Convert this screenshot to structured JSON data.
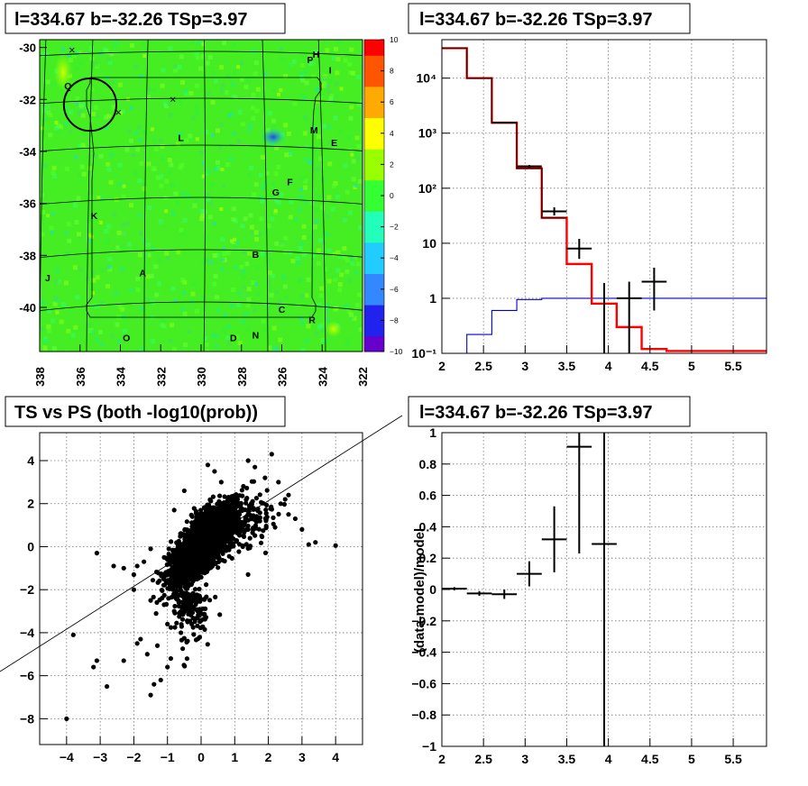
{
  "colors": {
    "histogram_model": "#ff0000",
    "histogram_data": "#000000",
    "background_model": "#0000cc",
    "map_ramp": [
      "#6600cc",
      "#2222ee",
      "#3388ff",
      "#22ccff",
      "#22ffbb",
      "#33ff33",
      "#99ff00",
      "#ffff00",
      "#ffaa00",
      "#ff5500",
      "#ff0000"
    ]
  },
  "chart_data": [
    {
      "id": "sky_map",
      "type": "heatmap",
      "title": "l=334.67 b=-32.26 TSp=3.97",
      "xlim": [
        338,
        322
      ],
      "ylim": [
        -41.7,
        -29.7
      ],
      "xticks": [
        338,
        336,
        334,
        332,
        330,
        328,
        326,
        324,
        322
      ],
      "yticks": [
        -30,
        -32,
        -34,
        -36,
        -38,
        -40
      ],
      "colorbar": {
        "range": [
          -10,
          10
        ],
        "ticks": [
          10,
          8,
          6,
          4,
          2,
          0,
          -2,
          -4,
          -6,
          -8,
          -10
        ]
      },
      "labels": [
        {
          "text": "Q",
          "x": 336.6,
          "y": -31.6
        },
        {
          "text": "H",
          "x": 324.3,
          "y": -30.4
        },
        {
          "text": "P",
          "x": 324.6,
          "y": -30.6
        },
        {
          "text": "I",
          "x": 323.6,
          "y": -31.0
        },
        {
          "text": "M",
          "x": 324.4,
          "y": -33.3
        },
        {
          "text": "E",
          "x": 323.4,
          "y": -33.8
        },
        {
          "text": "L",
          "x": 331.0,
          "y": -33.6
        },
        {
          "text": "F",
          "x": 325.6,
          "y": -35.3
        },
        {
          "text": "G",
          "x": 326.3,
          "y": -35.7
        },
        {
          "text": "K",
          "x": 335.3,
          "y": -36.6
        },
        {
          "text": "B",
          "x": 327.3,
          "y": -38.1
        },
        {
          "text": "J",
          "x": 337.6,
          "y": -39.0
        },
        {
          "text": "A",
          "x": 332.9,
          "y": -38.8
        },
        {
          "text": "C",
          "x": 326.0,
          "y": -40.2
        },
        {
          "text": "R",
          "x": 324.5,
          "y": -40.6
        },
        {
          "text": "N",
          "x": 327.3,
          "y": -41.2
        },
        {
          "text": "D",
          "x": 328.4,
          "y": -41.3
        },
        {
          "text": "O",
          "x": 333.7,
          "y": -41.3
        }
      ],
      "crosses": [
        {
          "x": 336.4,
          "y": -30.1
        },
        {
          "x": 334.1,
          "y": -32.5
        },
        {
          "x": 331.4,
          "y": -32.0
        }
      ],
      "circle": {
        "x": 335.5,
        "y": -32.2,
        "r": 0.5
      }
    },
    {
      "id": "spectrum",
      "type": "line",
      "title": "l=334.67 b=-32.26 TSp=3.97",
      "xlim": [
        2,
        5.9
      ],
      "ylim": [
        0.1,
        50000
      ],
      "yscale": "log",
      "xticks": [
        2,
        2.5,
        3,
        3.5,
        4,
        4.5,
        5,
        5.5
      ],
      "xticklabels": [
        "2",
        "2.5",
        "3",
        "3.5",
        "4",
        "4.5",
        "5",
        "5.5"
      ],
      "yticks": [
        0.1,
        1,
        10,
        100,
        1000,
        10000
      ],
      "yticklabels": [
        "10⁻¹",
        "1",
        "10",
        "10²",
        "10³",
        "10⁴"
      ],
      "bin_edges": [
        2,
        2.3,
        2.6,
        2.9,
        3.2,
        3.5,
        3.8,
        4.1,
        4.4,
        4.7,
        5.0,
        5.3,
        5.6,
        5.9
      ],
      "model": [
        35000,
        10000,
        1550,
        230,
        29,
        4.2,
        0.8,
        0.3,
        0.12,
        0.11,
        0.11,
        0.11,
        0.11
      ],
      "background": [
        0.1,
        0.22,
        0.6,
        0.95,
        1.0,
        1.0,
        1.0,
        1.0,
        1.0,
        1.0,
        1.0,
        1.0,
        1.0
      ],
      "data_points": [
        {
          "x": 2.75,
          "y": 1550,
          "dx": 0.15,
          "lo": 1500,
          "hi": 1600
        },
        {
          "x": 3.05,
          "y": 250,
          "dx": 0.15,
          "lo": 235,
          "hi": 265
        },
        {
          "x": 3.35,
          "y": 38,
          "dx": 0.15,
          "lo": 32,
          "hi": 45
        },
        {
          "x": 3.65,
          "y": 8,
          "dx": 0.15,
          "lo": 5.2,
          "hi": 12
        },
        {
          "x": 3.95,
          "y": 0.12,
          "dx": 0.0,
          "lo": 0.1,
          "hi": 1.9
        },
        {
          "x": 4.25,
          "y": 1.0,
          "dx": 0.15,
          "lo": 0.1,
          "hi": 2.0
        },
        {
          "x": 4.55,
          "y": 2.0,
          "dx": 0.15,
          "lo": 0.6,
          "hi": 3.6
        }
      ]
    },
    {
      "id": "ts_vs_ps",
      "type": "scatter",
      "title": "TS vs PS (both -log10(prob))",
      "xlim": [
        -4.8,
        4.8
      ],
      "ylim": [
        -9.2,
        5.3
      ],
      "xticks": [
        -4,
        -3,
        -2,
        -1,
        0,
        1,
        2,
        3,
        4
      ],
      "yticks": [
        -8,
        -6,
        -4,
        -2,
        0,
        2,
        4
      ],
      "diagonal": {
        "slope": 1
      },
      "outliers": [
        [
          -4.0,
          -8.0
        ],
        [
          -3.8,
          -4.1
        ],
        [
          -3.2,
          -5.6
        ],
        [
          -3.1,
          -5.3
        ],
        [
          -2.8,
          -6.5
        ],
        [
          -3.1,
          -0.3
        ],
        [
          -2.6,
          -0.9
        ],
        [
          -2.3,
          -1.0
        ],
        [
          -2.0,
          -1.3
        ],
        [
          -1.7,
          -0.7
        ],
        [
          -1.5,
          -0.1
        ],
        [
          -1.9,
          -0.9
        ],
        [
          -2.3,
          -5.3
        ],
        [
          -1.9,
          -4.5
        ],
        [
          -1.5,
          -6.9
        ],
        [
          -1.4,
          -6.4
        ],
        [
          -1.2,
          -6.2
        ],
        [
          -1.0,
          -5.6
        ],
        [
          -0.9,
          -5.2
        ],
        [
          -1.8,
          -4.3
        ],
        [
          -1.6,
          -5.0
        ],
        [
          -1.3,
          -4.6
        ],
        [
          -0.8,
          -3.0
        ],
        [
          -1.1,
          -2.7
        ],
        [
          -2.0,
          -2.0
        ],
        [
          -1.5,
          -2.5
        ],
        [
          -1.0,
          -3.6
        ],
        [
          -0.6,
          -4.0
        ],
        [
          -0.4,
          -3.5
        ],
        [
          -0.3,
          -2.8
        ],
        [
          0.4,
          3.5
        ],
        [
          0.6,
          3.0
        ],
        [
          1.6,
          3.7
        ],
        [
          2.1,
          4.3
        ],
        [
          1.9,
          3.2
        ],
        [
          2.5,
          2.2
        ],
        [
          2.6,
          1.5
        ],
        [
          2.8,
          1.3
        ],
        [
          3.0,
          0.8
        ],
        [
          3.4,
          0.2
        ],
        [
          4.0,
          0.05
        ],
        [
          3.2,
          0.1
        ],
        [
          2.2,
          0.9
        ],
        [
          1.8,
          0.5
        ],
        [
          2.3,
          3.0
        ],
        [
          -0.8,
          1.7
        ],
        [
          -0.5,
          2.6
        ],
        [
          0.2,
          3.8
        ],
        [
          2.6,
          2.4
        ],
        [
          1.4,
          4.0
        ]
      ],
      "cluster": {
        "mean": [
          0,
          0
        ],
        "sd": [
          0.45,
          0.9
        ],
        "corr": 0.72,
        "n": 2400
      }
    },
    {
      "id": "residuals",
      "type": "scatter",
      "title": "l=334.67 b=-32.26 TSp=3.97",
      "ylabel": "(data-model)/model",
      "xlim": [
        2,
        5.9
      ],
      "ylim": [
        -1,
        1
      ],
      "xticks": [
        2,
        2.5,
        3,
        3.5,
        4,
        4.5,
        5,
        5.5
      ],
      "xticklabels": [
        "2",
        "2.5",
        "3",
        "3.5",
        "4",
        "4.5",
        "5",
        "5.5"
      ],
      "yticks": [
        -1,
        -0.8,
        -0.6,
        -0.4,
        -0.2,
        0,
        0.2,
        0.4,
        0.6,
        0.8,
        1
      ],
      "yticklabels": [
        "−1",
        "−0.8",
        "−0.6",
        "−0.4",
        "−0.2",
        "0",
        "0.2",
        "0.4",
        "0.6",
        "0.8",
        "1"
      ],
      "points": [
        {
          "x": 2.15,
          "y": 0.005,
          "dx": 0.15,
          "err": 0.01
        },
        {
          "x": 2.45,
          "y": -0.025,
          "dx": 0.15,
          "err": 0.015
        },
        {
          "x": 2.75,
          "y": -0.03,
          "dx": 0.15,
          "err": 0.03
        },
        {
          "x": 3.05,
          "y": 0.1,
          "dx": 0.15,
          "err": 0.08
        },
        {
          "x": 3.35,
          "y": 0.32,
          "dx": 0.15,
          "err": 0.21
        },
        {
          "x": 3.65,
          "y": 0.91,
          "dx": 0.15,
          "err": 0.68
        },
        {
          "x": 3.95,
          "y": 0.29,
          "dx": 0.15,
          "err": 1.35
        }
      ]
    }
  ]
}
